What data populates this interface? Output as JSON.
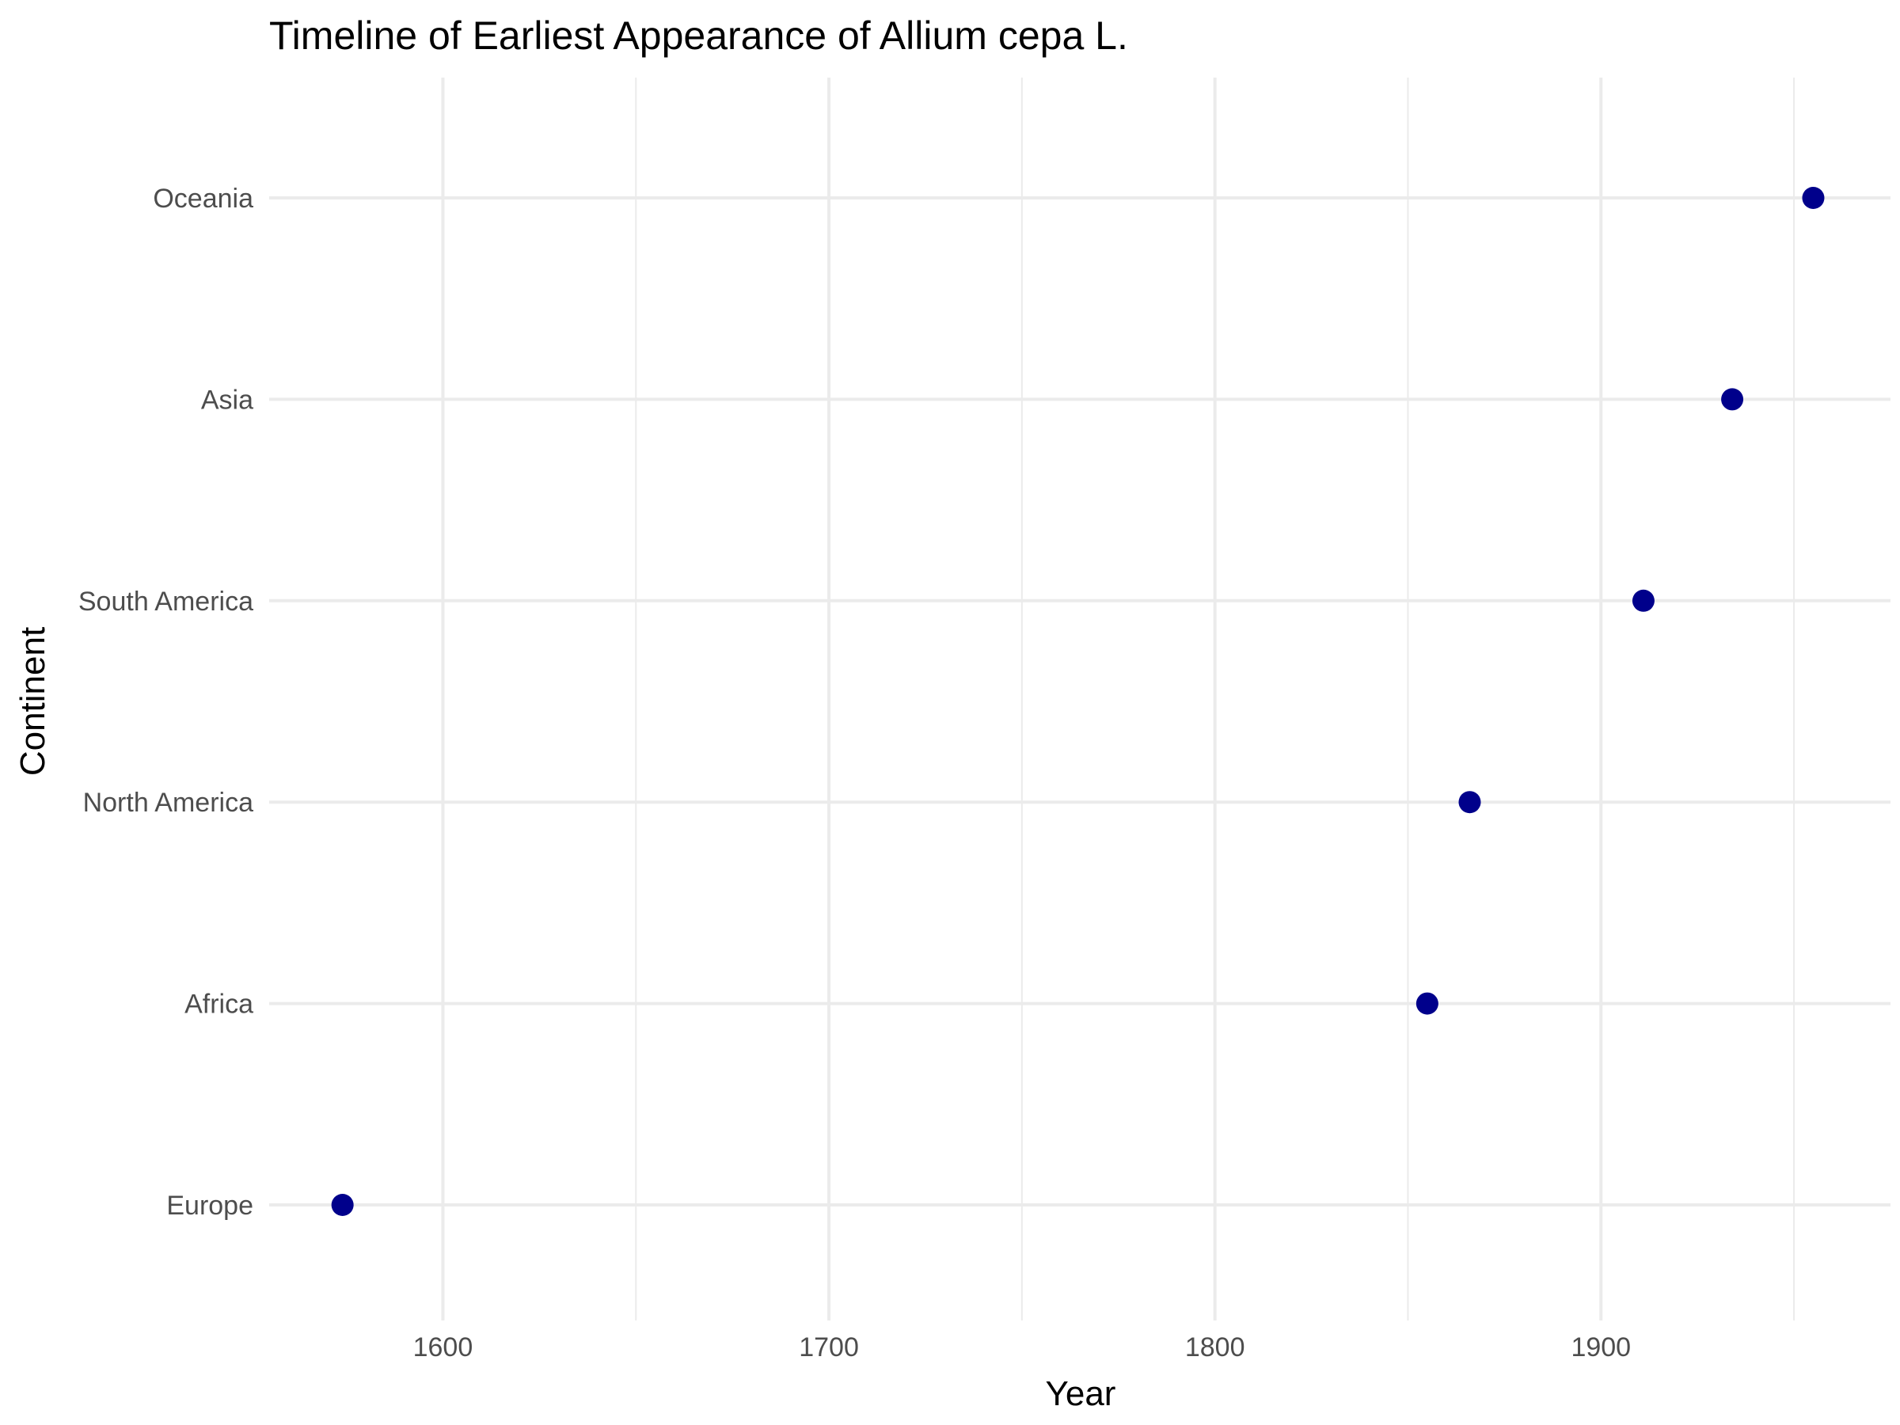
{
  "chart_data": {
    "type": "scatter",
    "title": "Timeline of Earliest Appearance of Allium cepa L.",
    "xlabel": "Year",
    "ylabel": "Continent",
    "xlim": [
      1555,
      1975
    ],
    "x_ticks": [
      1600,
      1700,
      1800,
      1900
    ],
    "x_ticks_minor": [
      1650,
      1750,
      1850,
      1950
    ],
    "categories": [
      "Europe",
      "Africa",
      "North America",
      "South America",
      "Asia",
      "Oceania"
    ],
    "points": [
      {
        "category": "Europe",
        "x": 1574
      },
      {
        "category": "Africa",
        "x": 1855
      },
      {
        "category": "North America",
        "x": 1866
      },
      {
        "category": "South America",
        "x": 1911
      },
      {
        "category": "Asia",
        "x": 1934
      },
      {
        "category": "Oceania",
        "x": 1955
      }
    ],
    "point_color": "#00008B",
    "grid": true,
    "legend": "none"
  }
}
